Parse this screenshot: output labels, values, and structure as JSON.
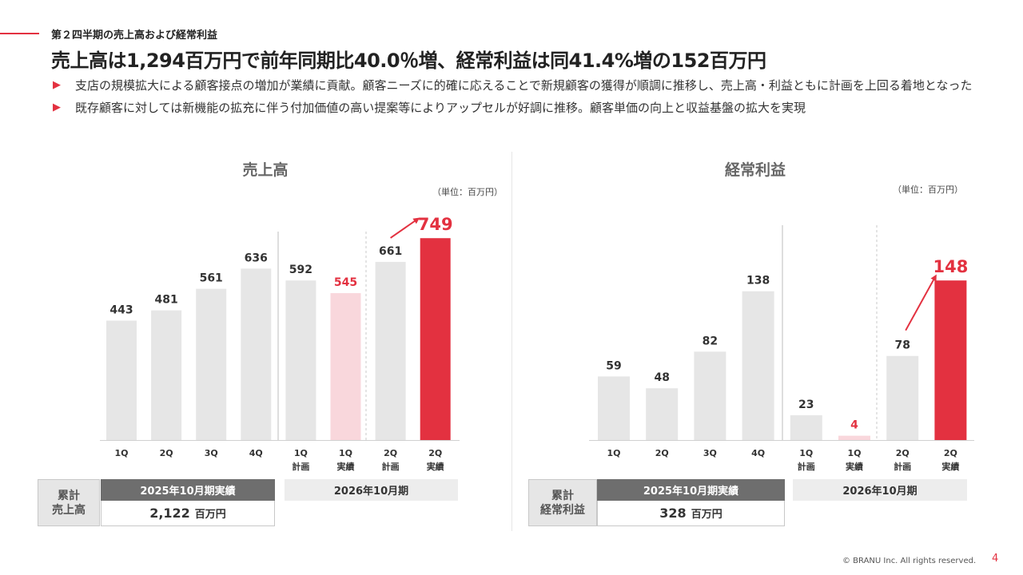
{
  "section_title": "第２四半期の売上高および経常利益",
  "headline": "売上高は1,294百万円で前年同期比40.0％増、経常利益は同41.4%増の152百万円",
  "bullets": [
    "支店の規模拡大による顧客接点の増加が業績に貢献。顧客ニーズに的確に応えることで新規顧客の獲得が順調に推移し、売上高・利益ともに計画を上回る着地となった",
    "既存顧客に対しては新機能の拡充に伴う付加価値の高い提案等によりアップセルが好調に推移。顧客単価の向上と収益基盤の拡大を実現"
  ],
  "colors": {
    "accent": "#e33140",
    "bar_gray": "#e6e6e6",
    "bar_pink": "#f9d7dc",
    "header_dark": "#6e6e6e"
  },
  "chart_data": [
    {
      "type": "bar",
      "title": "売上高",
      "unit": "（単位：百万円）",
      "categories": [
        "1Q",
        "2Q",
        "3Q",
        "4Q",
        "1Q\n計画",
        "1Q\n実績",
        "2Q\n計画",
        "2Q\n実績"
      ],
      "values": [
        443,
        481,
        561,
        636,
        592,
        545,
        661,
        749
      ],
      "bar_styles": [
        "gray",
        "gray",
        "gray",
        "gray",
        "gray",
        "pink",
        "gray",
        "red"
      ],
      "highlight_labels": [
        false,
        false,
        false,
        false,
        false,
        true,
        false,
        true
      ],
      "ylim": [
        0,
        800
      ],
      "arrow": {
        "from": 6,
        "to": 7
      },
      "cumulative": {
        "label": "累計\n売上高",
        "header": "2025年10月期実績",
        "value": "2,122",
        "unit": "百万円",
        "next_period": "2026年10月期"
      }
    },
    {
      "type": "bar",
      "title": "経常利益",
      "unit": "（単位：百万円）",
      "categories": [
        "1Q",
        "2Q",
        "3Q",
        "4Q",
        "1Q\n計画",
        "1Q\n実績",
        "2Q\n計画",
        "2Q\n実績"
      ],
      "values": [
        59,
        48,
        82,
        138,
        23,
        4,
        78,
        148
      ],
      "bar_styles": [
        "gray",
        "gray",
        "gray",
        "gray",
        "gray",
        "pink",
        "gray",
        "red"
      ],
      "highlight_labels": [
        false,
        false,
        false,
        false,
        false,
        true,
        false,
        true
      ],
      "ylim": [
        0,
        160
      ],
      "arrow": {
        "from": 6,
        "to": 7
      },
      "cumulative": {
        "label": "累計\n経常利益",
        "header": "2025年10月期実績",
        "value": "328",
        "unit": "百万円",
        "next_period": "2026年10月期"
      }
    }
  ],
  "footer": "© BRANU Inc. All rights reserved.",
  "page_number": "4"
}
